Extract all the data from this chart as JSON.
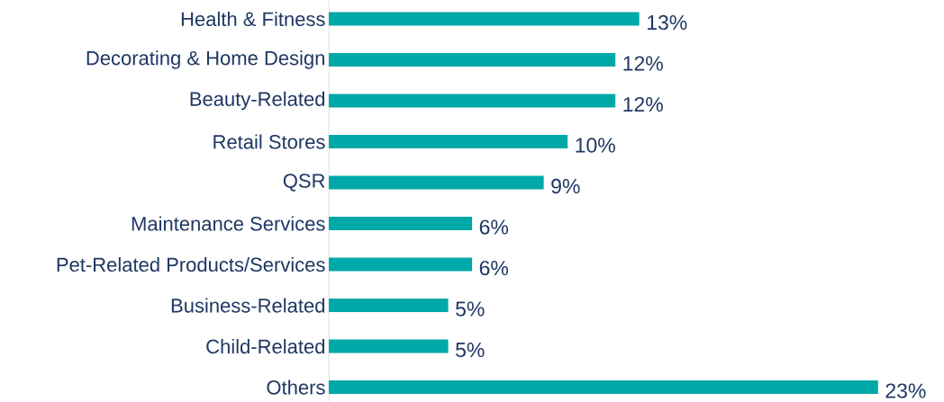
{
  "chart_data": {
    "type": "bar",
    "orientation": "horizontal",
    "categories": [
      "Health & Fitness",
      "Decorating & Home Design",
      "Beauty-Related",
      "Retail Stores",
      "QSR",
      "Maintenance Services",
      "Pet-Related Products/Services",
      "Business-Related",
      "Child-Related",
      "Others"
    ],
    "values": [
      13,
      12,
      12,
      10,
      9,
      6,
      6,
      5,
      5,
      23
    ],
    "value_labels": [
      "13%",
      "12%",
      "12%",
      "10%",
      "9%",
      "6%",
      "6%",
      "5%",
      "5%",
      "23%"
    ],
    "color": "#00a8a8"
  }
}
